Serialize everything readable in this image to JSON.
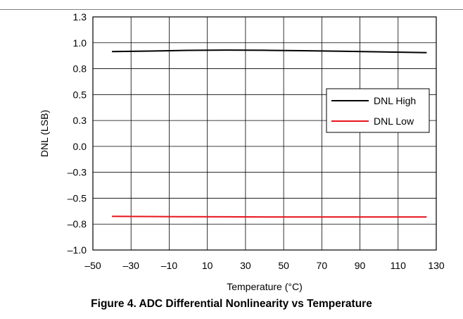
{
  "page": {
    "caption": "Figure 4. ADC Differential Nonlinearity vs Temperature"
  },
  "chart_data": {
    "type": "line",
    "title": "",
    "xlabel": "Temperature (°C)",
    "ylabel": "DNL (LSB)",
    "xlim": [
      -50,
      130
    ],
    "ylim": [
      -1.0,
      1.25
    ],
    "x_ticks": [
      -50,
      -30,
      -10,
      10,
      30,
      50,
      70,
      90,
      110,
      130
    ],
    "x_tick_labels": [
      "–50",
      "–30",
      "–10",
      "10",
      "30",
      "50",
      "70",
      "90",
      "110",
      "130"
    ],
    "y_ticks": [
      -1.0,
      -0.75,
      -0.5,
      -0.25,
      0.0,
      0.25,
      0.5,
      0.75,
      1.0,
      1.25
    ],
    "y_tick_labels": [
      "–1.0",
      "–0.8",
      "–0.5",
      "–0.3",
      "0.0",
      "0.3",
      "0.5",
      "0.8",
      "1.0",
      "1.3"
    ],
    "grid": true,
    "legend_position": "right",
    "series": [
      {
        "name": "DNL High",
        "color": "#000000",
        "x": [
          -40,
          -20,
          0,
          20,
          40,
          60,
          80,
          100,
          125
        ],
        "y": [
          0.915,
          0.92,
          0.927,
          0.93,
          0.928,
          0.924,
          0.919,
          0.913,
          0.905
        ]
      },
      {
        "name": "DNL Low",
        "color": "#e8141e",
        "x": [
          -40,
          -20,
          0,
          20,
          40,
          60,
          80,
          100,
          125
        ],
        "y": [
          -0.675,
          -0.677,
          -0.679,
          -0.68,
          -0.681,
          -0.681,
          -0.681,
          -0.681,
          -0.681
        ]
      }
    ]
  }
}
